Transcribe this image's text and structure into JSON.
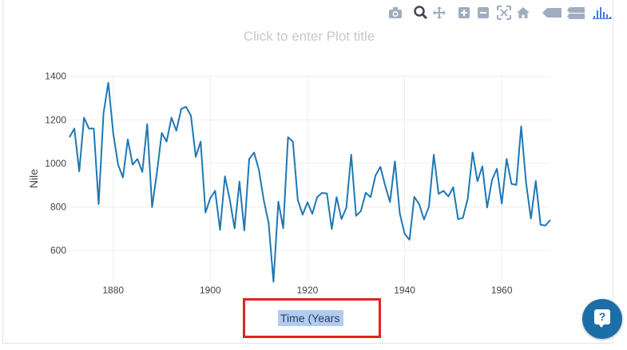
{
  "plot": {
    "title_placeholder": "Click to enter Plot title",
    "xaxis_title_input": "Time (Years"
  },
  "modebar": {
    "buttons": [
      {
        "name": "camera-icon"
      },
      {
        "name": "zoom-icon"
      },
      {
        "name": "pan-icon"
      },
      {
        "name": "zoom-in-icon"
      },
      {
        "name": "zoom-out-icon"
      },
      {
        "name": "autoscale-icon"
      },
      {
        "name": "reset-axes-icon"
      },
      {
        "name": "hover-closest-icon"
      },
      {
        "name": "hover-compare-icon"
      },
      {
        "name": "plotly-logo-icon"
      }
    ]
  },
  "help_button": {
    "label": "?",
    "icon": "help-chat-icon"
  },
  "colors": {
    "line": "#1f77b4",
    "highlight_box": "#e02323",
    "help_button": "#1b6ea8",
    "modebar_icon": "#a0adc1"
  },
  "chart_data": {
    "type": "line",
    "title": "",
    "xlabel": "Time (Years",
    "ylabel": "Nile",
    "xlim": [
      1871,
      1970
    ],
    "ylim": [
      450,
      1410
    ],
    "xticks": [
      1880,
      1900,
      1920,
      1940,
      1960
    ],
    "yticks": [
      600,
      800,
      1000,
      1200,
      1400
    ],
    "grid": true,
    "x_start": 1871,
    "series": [
      {
        "name": "",
        "values": [
          1120,
          1160,
          963,
          1210,
          1160,
          1160,
          813,
          1230,
          1370,
          1140,
          995,
          935,
          1110,
          994,
          1020,
          960,
          1180,
          799,
          958,
          1140,
          1100,
          1210,
          1150,
          1250,
          1260,
          1220,
          1030,
          1100,
          774,
          840,
          874,
          694,
          940,
          833,
          701,
          916,
          692,
          1020,
          1050,
          969,
          831,
          726,
          456,
          824,
          702,
          1120,
          1100,
          832,
          764,
          821,
          768,
          845,
          864,
          862,
          698,
          845,
          744,
          796,
          1040,
          759,
          781,
          865,
          845,
          944,
          984,
          897,
          822,
          1010,
          771,
          676,
          649,
          846,
          812,
          742,
          801,
          1040,
          860,
          874,
          848,
          890,
          744,
          749,
          838,
          1050,
          918,
          986,
          797,
          923,
          975,
          815,
          1020,
          906,
          901,
          1170,
          912,
          746,
          919,
          718,
          714,
          740
        ]
      }
    ]
  }
}
